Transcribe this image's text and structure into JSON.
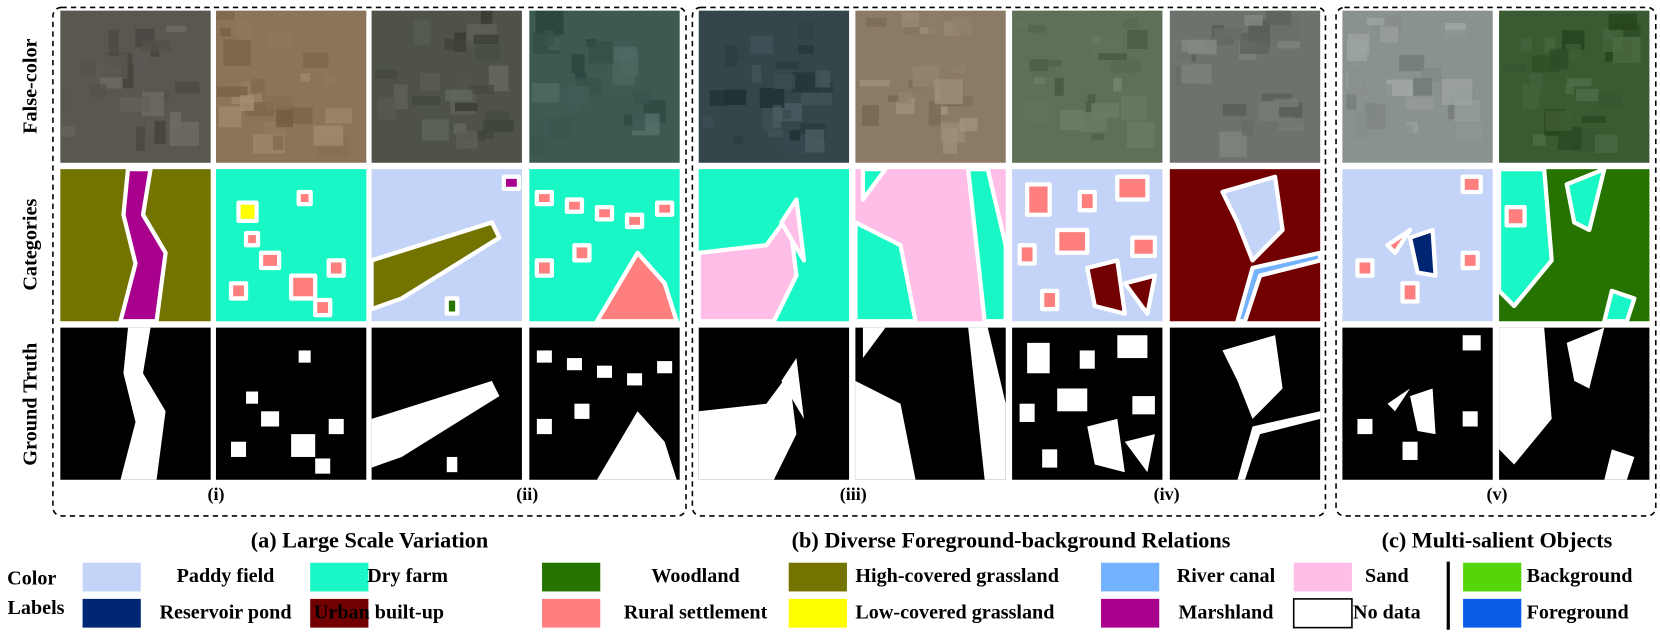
{
  "row_labels": [
    "False-color",
    "Categories",
    "Ground Truth"
  ],
  "groups": [
    {
      "caption": "(a) Large Scale Variation",
      "pairs": [
        "(i)",
        "(ii)"
      ]
    },
    {
      "caption": "(b) Diverse Foreground-background Relations",
      "pairs": [
        "(iii)",
        "(iv)"
      ]
    },
    {
      "caption": "(c) Multi-salient Objects",
      "pairs": [
        "(v)"
      ]
    }
  ],
  "legend": {
    "title_lines": [
      "Color",
      "Labels"
    ],
    "items": [
      {
        "label": "Paddy field",
        "color": "#c4d4f8"
      },
      {
        "label": "Dry farm",
        "color": "#19f7c6"
      },
      {
        "label": "Woodland",
        "color": "#267300"
      },
      {
        "label": "High-covered grassland",
        "color": "#737300"
      },
      {
        "label": "River canal",
        "color": "#73b2ff"
      },
      {
        "label": "Sand",
        "color": "#ffbee8"
      },
      {
        "label": "Background",
        "color": "#55d60a"
      },
      {
        "label": "Reservoir pond",
        "color": "#002673"
      },
      {
        "label": "Urban built-up",
        "color": "#730000"
      },
      {
        "label": "Rural settlement",
        "color": "#ff7f7f"
      },
      {
        "label": "Low-covered grassland",
        "color": "#ffff00"
      },
      {
        "label": "Marshland",
        "color": "#a8008c"
      },
      {
        "label": "No data",
        "color": "#ffffff"
      },
      {
        "label": "Foreground",
        "color": "#0a5ce6"
      }
    ]
  }
}
